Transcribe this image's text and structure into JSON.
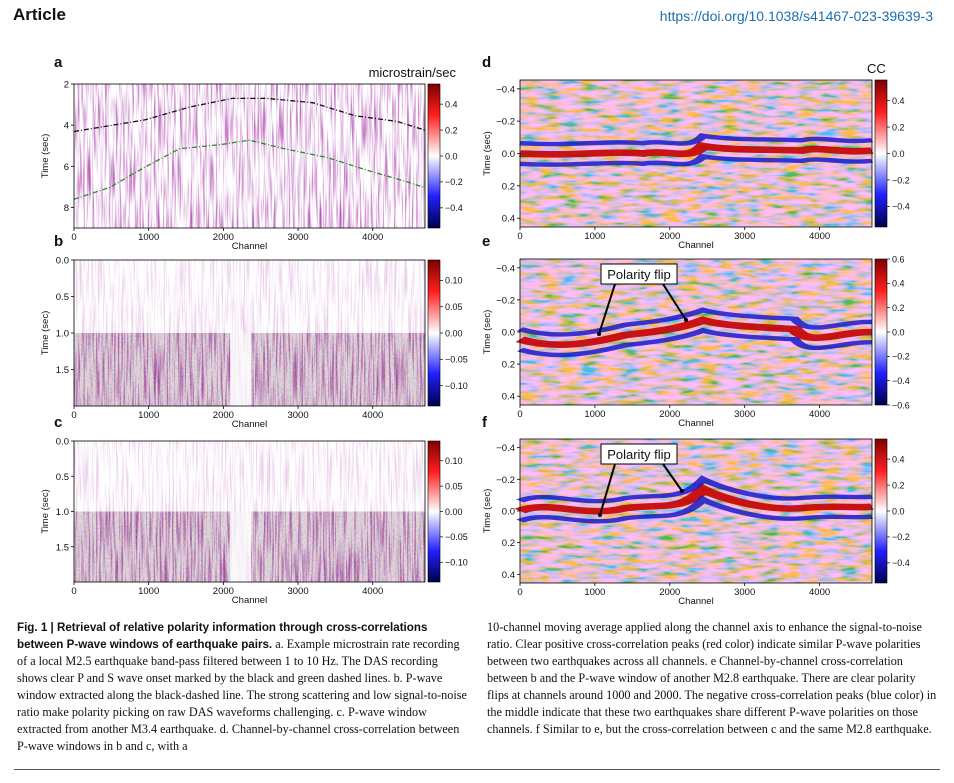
{
  "header": {
    "journal": "Article",
    "doi": "https://doi.org/10.1038/s41467-023-39639-3"
  },
  "colors": {
    "doi_link": "#1a6fb0",
    "black_dashed": "#111111",
    "green_dashed": "#2a8a2a"
  },
  "panels": [
    {
      "letter": "a",
      "kind": "purple",
      "xlabel": "Channel",
      "ylabel": "Time (sec)",
      "xticks": [
        "0",
        "1000",
        "2000",
        "3000",
        "4000"
      ],
      "yticks": [
        "2",
        "4",
        "6",
        "8"
      ],
      "cbar_title": "microstrain/sec",
      "cbar_ticks": [
        "0.4",
        "0.2",
        "0.0",
        "−0.2",
        "−0.4"
      ],
      "black_dashed_line": "P wave onset",
      "green_dashed_line": "S wave onset"
    },
    {
      "letter": "b",
      "kind": "purple-rb",
      "xlabel": "Channel",
      "ylabel": "Time (sec)",
      "xticks": [
        "0",
        "1000",
        "2000",
        "3000",
        "4000"
      ],
      "yticks": [
        "0.0",
        "0.5",
        "1.0",
        "1.5"
      ],
      "cbar_title": "",
      "cbar_ticks": [
        "0.10",
        "0.05",
        "0.00",
        "−0.05",
        "−0.10"
      ]
    },
    {
      "letter": "c",
      "kind": "purple-rb",
      "xlabel": "Channel",
      "ylabel": "Time (sec)",
      "xticks": [
        "0",
        "1000",
        "2000",
        "3000",
        "4000"
      ],
      "yticks": [
        "0.0",
        "0.5",
        "1.0",
        "1.5"
      ],
      "cbar_title": "",
      "cbar_ticks": [
        "0.10",
        "0.05",
        "0.00",
        "−0.05",
        "−0.10"
      ]
    },
    {
      "letter": "d",
      "kind": "seismic",
      "xlabel": "Channel",
      "ylabel": "Time (sec)",
      "xticks": [
        "0",
        "1000",
        "2000",
        "3000",
        "4000"
      ],
      "yticks": [
        "−0.4",
        "−0.2",
        "0.0",
        "0.2",
        "0.4"
      ],
      "cbar_title": "CC",
      "cbar_ticks": [
        "0.4",
        "0.2",
        "0.0",
        "−0.2",
        "−0.4"
      ]
    },
    {
      "letter": "e",
      "kind": "seismic",
      "xlabel": "Channel",
      "ylabel": "Time (sec)",
      "xticks": [
        "0",
        "1000",
        "2000",
        "3000",
        "4000"
      ],
      "yticks": [
        "−0.4",
        "−0.2",
        "0.0",
        "0.2",
        "0.4"
      ],
      "cbar_title": "",
      "cbar_ticks": [
        "0.6",
        "0.4",
        "0.2",
        "0.0",
        "−0.2",
        "−0.4",
        "−0.6"
      ],
      "annotation": "Polarity flip"
    },
    {
      "letter": "f",
      "kind": "seismic",
      "xlabel": "Channel",
      "ylabel": "Time (sec)",
      "xticks": [
        "0",
        "1000",
        "2000",
        "3000",
        "4000"
      ],
      "yticks": [
        "−0.4",
        "−0.2",
        "0.0",
        "0.2",
        "0.4"
      ],
      "cbar_title": "",
      "cbar_ticks": [
        "0.4",
        "0.2",
        "0.0",
        "−0.2",
        "−0.4"
      ],
      "annotation": "Polarity flip"
    }
  ],
  "caption": {
    "fig_label": "Fig. 1 | Retrieval of relative polarity information through cross-correlations between P-wave windows of earthquake pairs.",
    "seg1": " a. Example microstrain rate recording of a local M2.5 earthquake band-pass filtered between 1 to 10 Hz. The DAS recording shows clear P and S wave onset marked by the black and green dashed lines. b. P-wave window extracted along the black-dashed line. The strong scattering and low signal-to-noise ratio make polarity picking on raw DAS waveforms challenging. c. P-wave window extracted from another M3.4 earthquake. d. Channel-by-channel cross-correlation between P-wave windows in b and c, with a",
    "seg2": "10-channel moving average applied along the channel axis to enhance the signal-to-noise ratio. Clear positive cross-correlation peaks (red color) indicate similar P-wave polarities between two earthquakes across all channels. e Channel-by-channel cross-correlation between b and the P-wave window of another M2.8 earthquake. There are clear polarity flips at channels around 1000 and 2000. The negative cross-correlation peaks (blue color) in the middle indicate that these two earthquakes share different P-wave polarities on those channels. f Similar to e, but the cross-correlation between c and the same M2.8 earthquake."
  }
}
